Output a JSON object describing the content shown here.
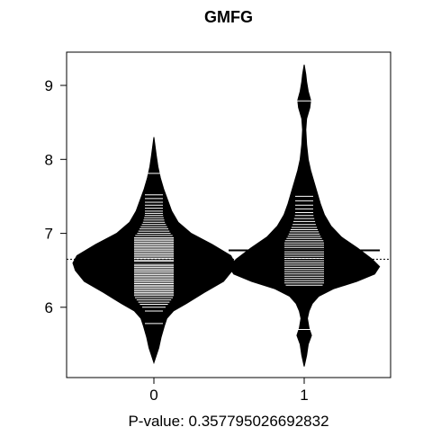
{
  "chart_data": {
    "type": "beanplot",
    "title": "GMFG",
    "xlabel": "P-value: 0.357795026692832",
    "ylabel": "",
    "categories": [
      "0",
      "1"
    ],
    "ylim": [
      5.05,
      9.45
    ],
    "yticks": [
      6,
      7,
      8,
      9
    ],
    "overall_mean": 6.65,
    "grid": false,
    "legend": "none",
    "colors": {
      "bean": "#000000",
      "line": "#ffffff",
      "mean_line": "#000000",
      "background": "#ffffff"
    },
    "beans": [
      {
        "category": "0",
        "group_mean": 6.6,
        "density": [
          [
            5.25,
            0.0
          ],
          [
            5.45,
            0.06
          ],
          [
            5.6,
            0.09
          ],
          [
            5.75,
            0.13
          ],
          [
            5.85,
            0.16
          ],
          [
            5.95,
            0.24
          ],
          [
            6.05,
            0.4
          ],
          [
            6.2,
            0.62
          ],
          [
            6.35,
            0.86
          ],
          [
            6.5,
            0.97
          ],
          [
            6.6,
            1.0
          ],
          [
            6.7,
            0.95
          ],
          [
            6.85,
            0.72
          ],
          [
            7.0,
            0.46
          ],
          [
            7.15,
            0.3
          ],
          [
            7.3,
            0.22
          ],
          [
            7.45,
            0.17
          ],
          [
            7.6,
            0.12
          ],
          [
            7.75,
            0.08
          ],
          [
            7.9,
            0.05
          ],
          [
            8.05,
            0.03
          ],
          [
            8.3,
            0.0
          ]
        ],
        "values": [
          5.78,
          5.95,
          6.0,
          6.04,
          6.07,
          6.1,
          6.13,
          6.16,
          6.18,
          6.2,
          6.22,
          6.24,
          6.26,
          6.28,
          6.3,
          6.32,
          6.34,
          6.36,
          6.38,
          6.4,
          6.42,
          6.44,
          6.46,
          6.48,
          6.5,
          6.52,
          6.54,
          6.56,
          6.58,
          6.6,
          6.62,
          6.64,
          6.66,
          6.68,
          6.7,
          6.72,
          6.74,
          6.76,
          6.78,
          6.8,
          6.82,
          6.84,
          6.86,
          6.88,
          6.9,
          6.92,
          6.94,
          6.97,
          7.0,
          7.03,
          7.06,
          7.09,
          7.12,
          7.15,
          7.18,
          7.21,
          7.24,
          7.27,
          7.3,
          7.34,
          7.38,
          7.42,
          7.47,
          7.52,
          7.81
        ]
      },
      {
        "category": "1",
        "group_mean": 6.77,
        "density": [
          [
            5.2,
            0.0
          ],
          [
            5.35,
            0.03
          ],
          [
            5.5,
            0.05
          ],
          [
            5.62,
            0.09
          ],
          [
            5.72,
            0.06
          ],
          [
            5.85,
            0.04
          ],
          [
            5.95,
            0.06
          ],
          [
            6.05,
            0.1
          ],
          [
            6.15,
            0.18
          ],
          [
            6.25,
            0.36
          ],
          [
            6.35,
            0.65
          ],
          [
            6.45,
            0.87
          ],
          [
            6.55,
            0.93
          ],
          [
            6.65,
            0.84
          ],
          [
            6.8,
            0.66
          ],
          [
            6.95,
            0.46
          ],
          [
            7.1,
            0.33
          ],
          [
            7.25,
            0.25
          ],
          [
            7.4,
            0.2
          ],
          [
            7.55,
            0.16
          ],
          [
            7.7,
            0.12
          ],
          [
            7.85,
            0.08
          ],
          [
            8.0,
            0.05
          ],
          [
            8.2,
            0.03
          ],
          [
            8.4,
            0.02
          ],
          [
            8.55,
            0.03
          ],
          [
            8.7,
            0.07
          ],
          [
            8.8,
            0.08
          ],
          [
            8.92,
            0.05
          ],
          [
            9.05,
            0.03
          ],
          [
            9.15,
            0.02
          ],
          [
            9.28,
            0.0
          ]
        ],
        "values": [
          5.7,
          6.3,
          6.33,
          6.36,
          6.39,
          6.42,
          6.45,
          6.48,
          6.51,
          6.54,
          6.57,
          6.6,
          6.63,
          6.66,
          6.69,
          6.72,
          6.75,
          6.78,
          6.81,
          6.84,
          6.87,
          6.9,
          6.93,
          6.96,
          6.99,
          7.02,
          7.05,
          7.08,
          7.12,
          7.16,
          7.2,
          7.24,
          7.28,
          7.33,
          7.38,
          7.44,
          7.5,
          8.79
        ]
      }
    ]
  }
}
